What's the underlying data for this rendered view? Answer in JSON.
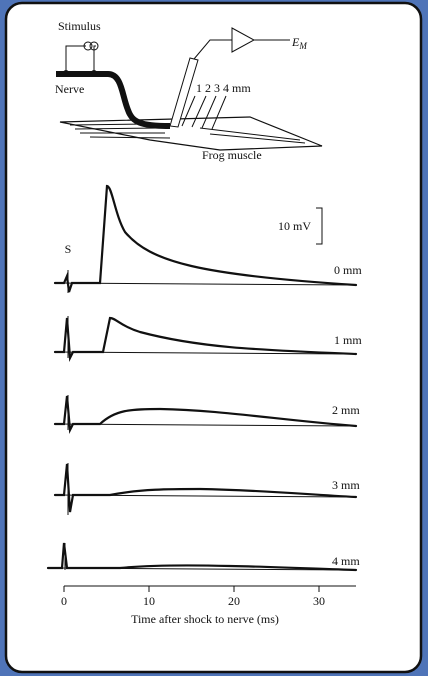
{
  "diagram": {
    "stimulus_label": "Stimulus",
    "nerve_label": "Nerve",
    "electrode_positions_label": "1 2 3 4 mm",
    "output_symbol": "E",
    "output_subscript": "M",
    "muscle_label": "Frog muscle"
  },
  "recordings": {
    "stimulus_marker": "S",
    "scale_bar_label": "10 mV",
    "trace_labels": [
      "0 mm",
      "1 mm",
      "2 mm",
      "3 mm",
      "4 mm"
    ],
    "x_axis": {
      "label": "Time after shock to nerve (ms)",
      "ticks": [
        0,
        10,
        20,
        30
      ]
    }
  }
}
